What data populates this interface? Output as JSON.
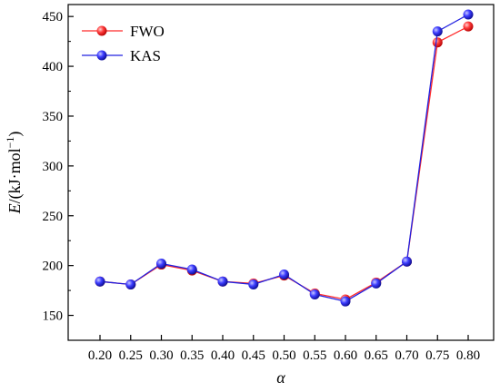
{
  "chart_data": {
    "type": "line",
    "x": [
      "0.20",
      "0.25",
      "0.30",
      "0.35",
      "0.40",
      "0.45",
      "0.50",
      "0.55",
      "0.60",
      "0.65",
      "0.70",
      "0.75",
      "0.80"
    ],
    "series": [
      {
        "name": "FWO",
        "color": "#ff2a2a",
        "values": [
          184,
          181,
          201,
          195,
          184,
          182,
          190,
          172,
          166,
          183,
          204,
          424,
          440
        ]
      },
      {
        "name": "KAS",
        "color": "#2020e0",
        "values": [
          184,
          181,
          202,
          196,
          184,
          181,
          191,
          171,
          164,
          182,
          204,
          435,
          452
        ]
      }
    ],
    "xlabel": "α",
    "ylabel": "E/(kJ·mol⁻¹)",
    "ylim": [
      125,
      462
    ],
    "yticks": [
      150,
      200,
      250,
      300,
      350,
      400,
      450
    ],
    "legend_position": "top-left",
    "grid": false
  }
}
